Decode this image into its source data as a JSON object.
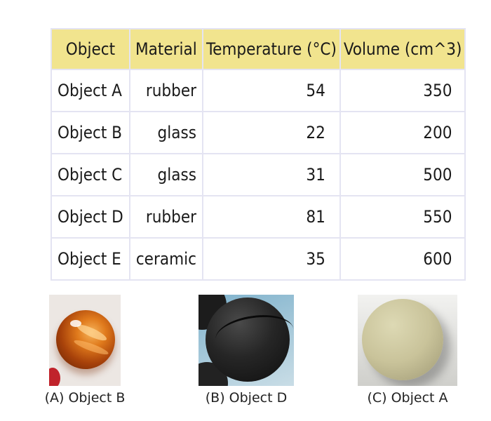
{
  "table": {
    "headers": [
      "Object",
      "Material",
      "Temperature (°C)",
      "Volume (cm^3)"
    ],
    "rows": [
      [
        "Object A",
        "rubber",
        "54",
        "350"
      ],
      [
        "Object B",
        "glass",
        "22",
        "200"
      ],
      [
        "Object C",
        "glass",
        "31",
        "500"
      ],
      [
        "Object D",
        "rubber",
        "81",
        "550"
      ],
      [
        "Object E",
        "ceramic",
        "35",
        "600"
      ]
    ]
  },
  "choices": [
    {
      "label": "(A) Object B",
      "image": "orange-glass-marble"
    },
    {
      "label": "(B) Object D",
      "image": "black-rubber-ball"
    },
    {
      "label": "(C) Object A",
      "image": "beige-ceramic-ball"
    }
  ],
  "colors": {
    "header_bg": "#f1e48e",
    "border": "#e4e4f2"
  }
}
